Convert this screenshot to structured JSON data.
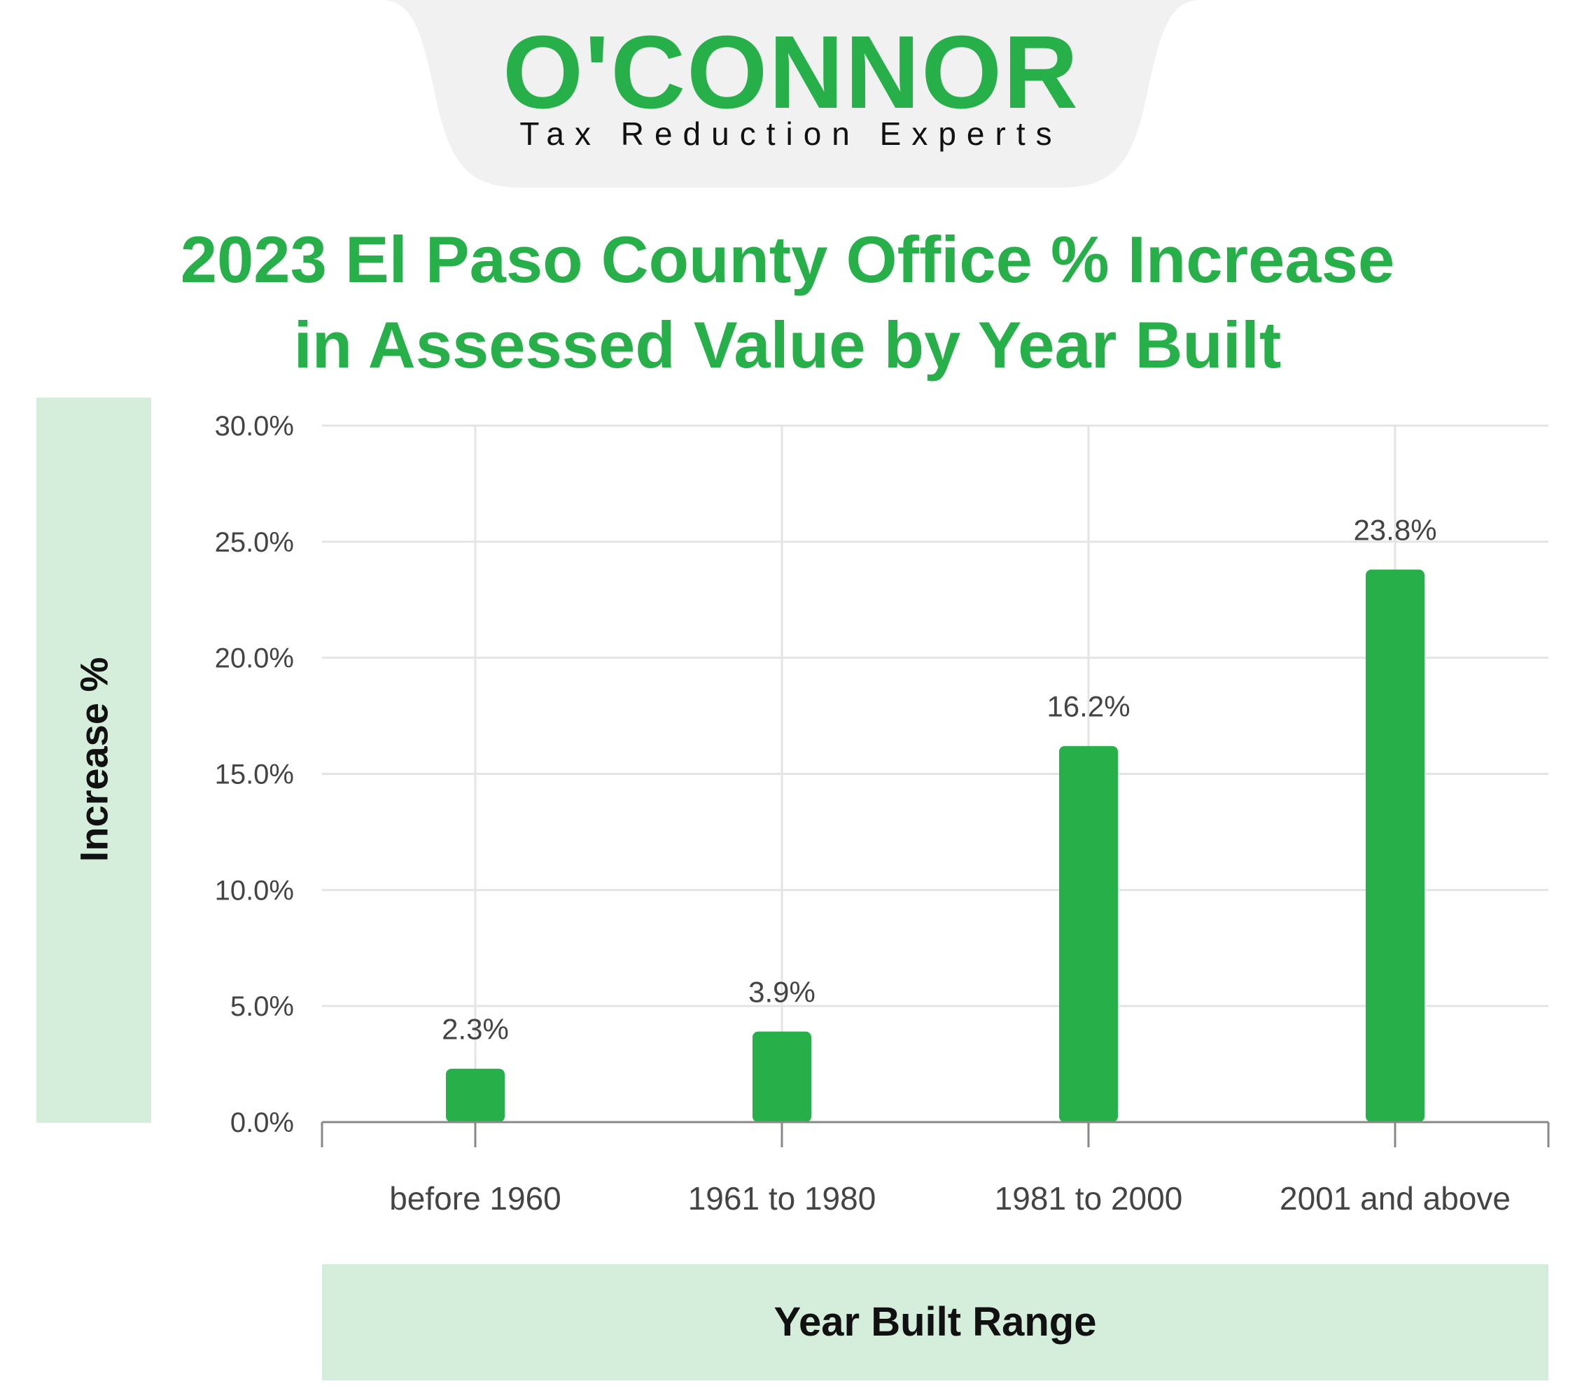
{
  "logo": {
    "name": "O'CONNOR",
    "tagline": "Tax Reduction Experts",
    "tab_color": "#f1f1f1",
    "brand_color": "#27b04a"
  },
  "colors": {
    "bar": "#27b04a",
    "title": "#27b04a",
    "label_band": "#d5eedc",
    "grid": "#e4e4e4",
    "axis": "#888888"
  },
  "chart_data": {
    "type": "bar",
    "title": "2023 El Paso County Office % Increase in Assessed Value by Year Built",
    "title_lines": [
      "2023 El Paso County Office % Increase",
      "in Assessed Value by Year Built"
    ],
    "xlabel": "Year Built Range",
    "ylabel": "Increase %",
    "categories": [
      "before 1960",
      "1961 to 1980",
      "1981 to 2000",
      "2001 and above"
    ],
    "values": [
      2.3,
      3.9,
      16.2,
      23.8
    ],
    "data_labels": [
      "2.3%",
      "3.9%",
      "16.2%",
      "23.8%"
    ],
    "ylim": [
      0,
      30
    ],
    "yticks": [
      0,
      5,
      10,
      15,
      20,
      25,
      30
    ],
    "ytick_labels": [
      "0.0%",
      "5.0%",
      "10.0%",
      "15.0%",
      "20.0%",
      "25.0%",
      "30.0%"
    ],
    "grid": true,
    "legend": "none"
  }
}
